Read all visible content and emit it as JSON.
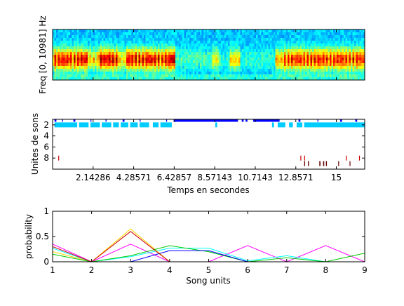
{
  "chart_data": [
    {
      "type": "heatmap",
      "ylabel": "Freq [0, 10981] Hz",
      "xlim": [
        0,
        16.5
      ],
      "description_of_regions": "song bouts dense-red, quiet stretches cyan",
      "activity_segments": [
        {
          "start": 0.0,
          "end": 1.9,
          "level": 0.85
        },
        {
          "start": 1.9,
          "end": 2.4,
          "level": 0.55
        },
        {
          "start": 2.4,
          "end": 3.5,
          "level": 0.9
        },
        {
          "start": 3.5,
          "end": 3.9,
          "level": 0.5
        },
        {
          "start": 3.9,
          "end": 6.2,
          "level": 0.85
        },
        {
          "start": 6.2,
          "end": 6.5,
          "level": 0.95
        },
        {
          "start": 6.5,
          "end": 8.4,
          "level": 0.2
        },
        {
          "start": 8.4,
          "end": 8.8,
          "level": 0.45
        },
        {
          "start": 8.8,
          "end": 9.4,
          "level": 0.15
        },
        {
          "start": 9.4,
          "end": 9.9,
          "level": 0.5
        },
        {
          "start": 9.9,
          "end": 11.8,
          "level": 0.15
        },
        {
          "start": 11.8,
          "end": 12.2,
          "level": 0.6
        },
        {
          "start": 12.2,
          "end": 16.5,
          "level": 0.8
        }
      ]
    },
    {
      "type": "scatter",
      "xlabel": "Temps en secondes",
      "ylabel": "Unites de sons",
      "xlim": [
        0,
        16.5
      ],
      "ylim": [
        10,
        1
      ],
      "xticks": [
        "2.14286",
        "4.28571",
        "6.42857",
        "8.57143",
        "10.7143",
        "12.8571",
        "15"
      ],
      "xtick_values": [
        2.14286,
        4.28571,
        6.42857,
        8.57143,
        10.7143,
        12.8571,
        15
      ],
      "yticks": [
        "2",
        "4",
        "6",
        "8"
      ],
      "ytick_values": [
        2,
        4,
        6,
        8
      ],
      "series": [
        {
          "color": "#0000ff",
          "y": 1,
          "intervals": [
            [
              0.1,
              0.2
            ],
            [
              0.5,
              0.55
            ],
            [
              1.1,
              1.2
            ],
            [
              2.0,
              2.05
            ],
            [
              2.8,
              2.85
            ],
            [
              3.7,
              3.8
            ],
            [
              4.6,
              4.65
            ],
            [
              6.0,
              6.05
            ],
            [
              6.4,
              9.8
            ],
            [
              10.0,
              10.1
            ],
            [
              10.2,
              10.3
            ],
            [
              10.6,
              12.0
            ],
            [
              13.0,
              13.1
            ],
            [
              14.0,
              14.05
            ],
            [
              15.2,
              15.3
            ],
            [
              16.0,
              16.1
            ]
          ]
        },
        {
          "color": "#00ccff",
          "y": 2,
          "intervals": [
            [
              0.1,
              1.3
            ],
            [
              1.4,
              1.9
            ],
            [
              2.0,
              2.5
            ],
            [
              2.6,
              3.1
            ],
            [
              3.2,
              3.5
            ],
            [
              3.6,
              4.0
            ],
            [
              4.1,
              4.5
            ],
            [
              4.6,
              5.1
            ],
            [
              5.3,
              5.6
            ],
            [
              5.7,
              6.3
            ],
            [
              8.6,
              8.7
            ],
            [
              11.6,
              11.7
            ],
            [
              11.9,
              12.3
            ],
            [
              12.5,
              12.7
            ],
            [
              12.9,
              13.2
            ],
            [
              13.3,
              16.5
            ]
          ]
        },
        {
          "color": "#cc0000",
          "y": 8,
          "intervals": [
            [
              0.3,
              0.32
            ],
            [
              13.1,
              13.13
            ],
            [
              13.3,
              13.33
            ],
            [
              15.5,
              15.53
            ],
            [
              16.2,
              16.23
            ]
          ]
        },
        {
          "color": "#660000",
          "y": 9,
          "intervals": [
            [
              13.3,
              13.35
            ],
            [
              13.5,
              13.55
            ],
            [
              14.1,
              14.16
            ],
            [
              14.3,
              14.36
            ],
            [
              14.45,
              14.5
            ],
            [
              15.1,
              15.13
            ],
            [
              15.7,
              15.73
            ]
          ]
        }
      ]
    },
    {
      "type": "line",
      "xlabel": "Song units",
      "ylabel": "probability",
      "xlim": [
        1,
        9
      ],
      "ylim": [
        0,
        1
      ],
      "xticks": [
        "1",
        "2",
        "3",
        "4",
        "5",
        "6",
        "7",
        "8",
        "9"
      ],
      "x": [
        1,
        2,
        3,
        4,
        5,
        6,
        7,
        8,
        9
      ],
      "yticks": [
        "0",
        "0.5",
        "1"
      ],
      "ytick_values": [
        0,
        0.5,
        1
      ],
      "series": [
        {
          "color": "#ff00ff",
          "values": [
            0.35,
            0.0,
            0.35,
            0.0,
            0.0,
            0.32,
            0.0,
            0.32,
            0.0
          ]
        },
        {
          "color": "#ffd700",
          "values": [
            0.2,
            0.0,
            0.65,
            0.0,
            0.0,
            0.0,
            0.0,
            0.0,
            0.0
          ]
        },
        {
          "color": "#00ffff",
          "values": [
            0.27,
            0.0,
            0.1,
            0.27,
            0.27,
            0.02,
            0.12,
            0.0,
            0.0
          ]
        },
        {
          "color": "#00cc00",
          "values": [
            0.15,
            0.0,
            0.12,
            0.32,
            0.2,
            0.0,
            0.08,
            0.0,
            0.17
          ]
        },
        {
          "color": "#0000ff",
          "values": [
            0.0,
            0.0,
            0.0,
            0.22,
            0.22,
            0.0,
            0.0,
            0.0,
            0.0
          ]
        },
        {
          "color": "#cc0000",
          "values": [
            0.3,
            0.0,
            0.6,
            0.0,
            0.0,
            0.0,
            0.0,
            0.0,
            0.0
          ]
        }
      ]
    }
  ]
}
